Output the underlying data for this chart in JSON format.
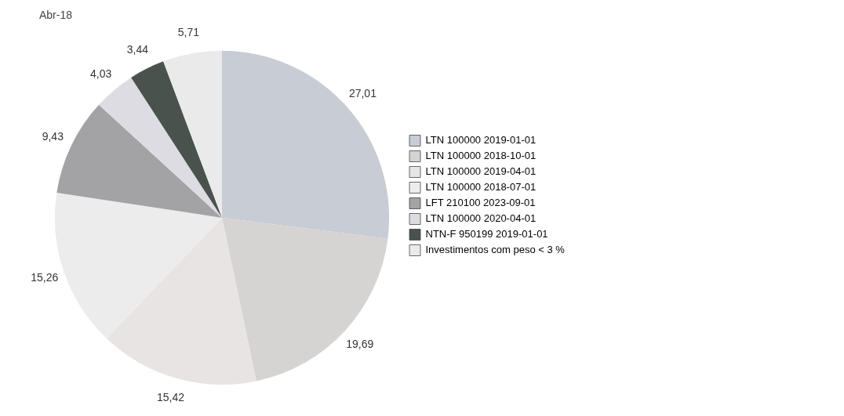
{
  "chart_data": {
    "type": "pie",
    "title": "Abr-18",
    "categories": [
      "LTN 100000 2019-01-01",
      "LTN 100000 2018-10-01",
      "LTN 100000 2019-04-01",
      "LTN 100000 2018-07-01",
      "LFT 210100 2023-09-01",
      "LTN 100000 2020-04-01",
      "NTN-F 950199 2019-01-01",
      "Investimentos com peso < 3 %"
    ],
    "values": [
      27.01,
      19.69,
      15.42,
      15.26,
      9.43,
      4.03,
      3.44,
      5.71
    ],
    "colors": [
      "#c8ccd4",
      "#d6d3d3",
      "#e8e4e4",
      "#ececec",
      "#a3a3a6",
      "#dcdce2",
      "#4a524d",
      "#eaeaea"
    ],
    "value_labels": [
      "27,01",
      "19,69",
      "15,42",
      "15,26",
      "9,43",
      "4,03",
      "3,44",
      "5,71"
    ],
    "legend": "right"
  }
}
